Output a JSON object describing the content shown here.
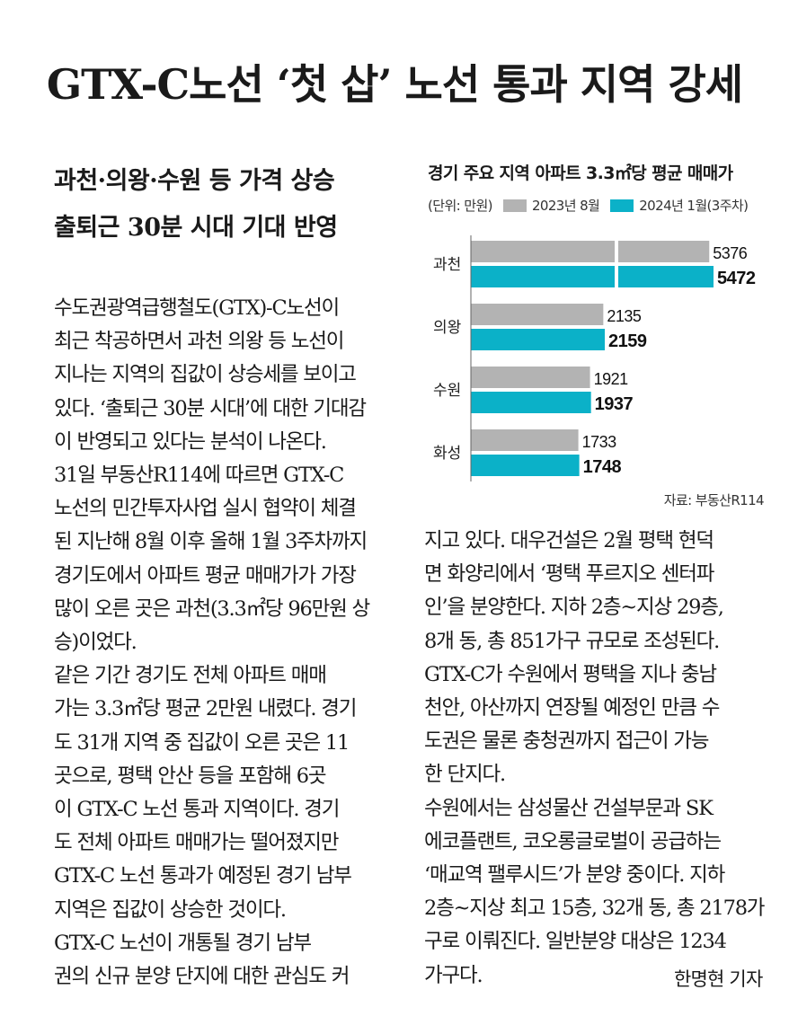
{
  "headline": "GTX-C노선 ‘첫 삽’ 노선 통과 지역 강세",
  "subhead": [
    "과천·의왕·수원 등 가격 상승",
    "출퇴근 30분 시대 기대 반영"
  ],
  "body_left": [
    "수도권광역급행철도(GTX)-C노선이",
    "최근 착공하면서 과천 의왕 등 노선이",
    "지나는 지역의 집값이 상승세를 보이고",
    "있다. ‘출퇴근 30분 시대’에 대한 기대감",
    "이 반영되고 있다는 분석이 나온다.",
    "  31일 부동산R114에 따르면 GTX-C",
    "노선의 민간투자사업 실시 협약이 체결",
    "된 지난해 8월 이후 올해 1월 3주차까지",
    "경기도에서 아파트 평균 매매가가 가장",
    "많이 오른 곳은 과천(3.3㎡당 96만원 상",
    "승)이었다.",
    "  같은 기간 경기도 전체 아파트 매매",
    "가는 3.3㎡당 평균 2만원 내렸다. 경기",
    "도 31개 지역 중 집값이 오른 곳은 11",
    "곳으로, 평택 안산 등을 포함해 6곳",
    "이 GTX-C 노선 통과 지역이다. 경기",
    "도 전체 아파트 매매가는 떨어졌지만",
    "GTX-C 노선 통과가 예정된 경기 남부",
    "지역은 집값이 상승한 것이다.",
    "  GTX-C 노선이 개통될 경기 남부",
    "권의 신규 분양 단지에 대한 관심도 커"
  ],
  "body_right": [
    "지고 있다. 대우건설은 2월 평택 현덕",
    "면 화양리에서 ‘평택 푸르지오 센터파",
    "인’을 분양한다. 지하 2층~지상 29층,",
    "8개 동, 총 851가구 규모로 조성된다.",
    "GTX-C가 수원에서 평택을 지나 충남",
    "천안, 아산까지 연장될 예정인 만큼 수",
    "도권은 물론 충청권까지 접근이 가능",
    "한 단지다.",
    "  수원에서는 삼성물산 건설부문과 SK",
    "에코플랜트, 코오롱글로벌이 공급하는",
    "‘매교역 팰루시드’가 분양 중이다. 지하",
    "2층~지상 최고 15층, 32개 동, 총 2178가",
    "구로 이뤄진다. 일반분양 대상은 1234",
    "가구다."
  ],
  "byline": "한명현 기자",
  "chart_data": {
    "type": "bar",
    "orientation": "horizontal",
    "title": "경기 주요 지역 아파트 3.3㎡당 평균 매매가",
    "unit": "(단위: 만원)",
    "categories": [
      "과천",
      "의왕",
      "수원",
      "화성"
    ],
    "series": [
      {
        "name": "2023년 8월",
        "color": "#b3b3b3",
        "values": [
          5376,
          2135,
          1921,
          1733
        ]
      },
      {
        "name": "2024년 1월(3주차)",
        "color": "#0bb1c8",
        "values": [
          5472,
          2159,
          1937,
          1748
        ]
      }
    ],
    "axis_break": true,
    "source": "자료: 부동산R114"
  }
}
